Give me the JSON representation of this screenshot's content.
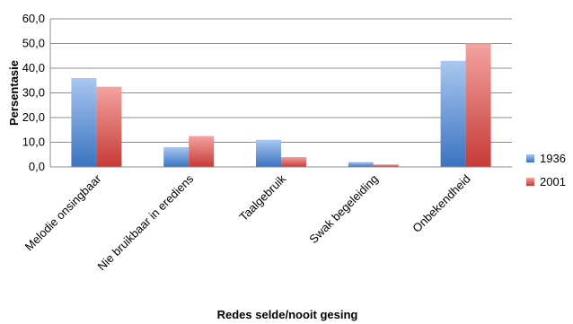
{
  "chart_data": {
    "type": "bar",
    "title": "",
    "xlabel": "Redes selde/nooit gesing",
    "ylabel": "Persentasie",
    "ylim": [
      0,
      60
    ],
    "yticks": [
      "0,0",
      "10,0",
      "20,0",
      "30,0",
      "40,0",
      "50,0",
      "60,0"
    ],
    "categories": [
      "Melodie onsingbaar",
      "Nie bruikbaar in erediens",
      "Taalgebruik",
      "Swak begeleiding",
      "Onbekendheid"
    ],
    "series": [
      {
        "name": "1936",
        "values": [
          36.0,
          8.0,
          11.0,
          2.0,
          43.0
        ],
        "color": "#4a7ebf"
      },
      {
        "name": "2001",
        "values": [
          32.5,
          12.5,
          4.0,
          1.0,
          50.0
        ],
        "color": "#c0413d"
      }
    ],
    "grid": true,
    "legend_position": "right"
  }
}
